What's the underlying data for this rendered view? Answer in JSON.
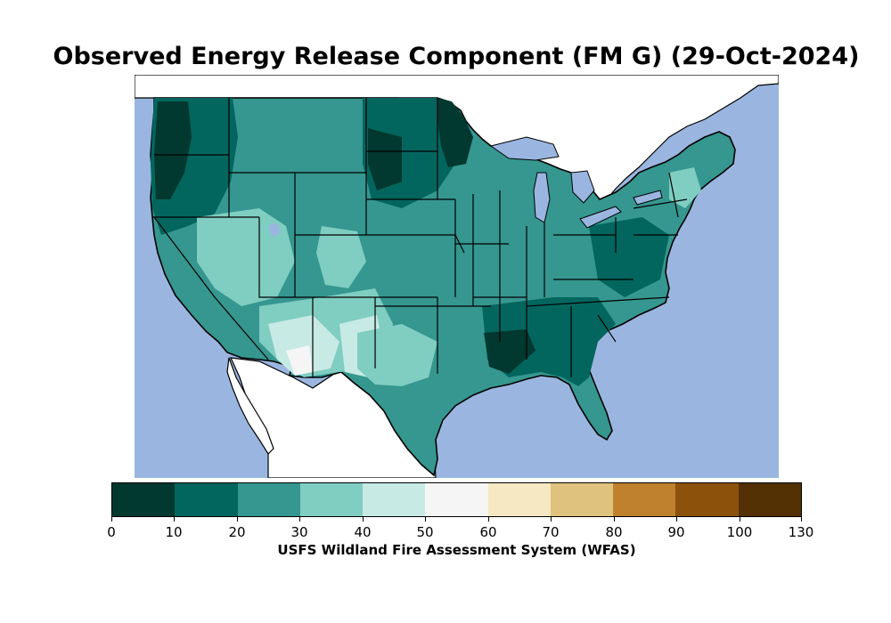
{
  "title": "Observed Energy Release Component (FM G) (29-Oct-2024)",
  "colorbar": {
    "label": "USFS Wildland Fire Assessment System (WFAS)",
    "ticks": [
      "0",
      "10",
      "20",
      "30",
      "40",
      "50",
      "60",
      "70",
      "80",
      "90",
      "100",
      "130"
    ],
    "colors": [
      "#01382f",
      "#03665e",
      "#35978f",
      "#80cdc1",
      "#c7eae5",
      "#f5f5f5",
      "#f6e8c3",
      "#dfc27d",
      "#bf812d",
      "#8c510a",
      "#543005"
    ]
  },
  "map": {
    "ocean_color": "#9ab6e0",
    "land_outside_color": "#ffffff"
  }
}
